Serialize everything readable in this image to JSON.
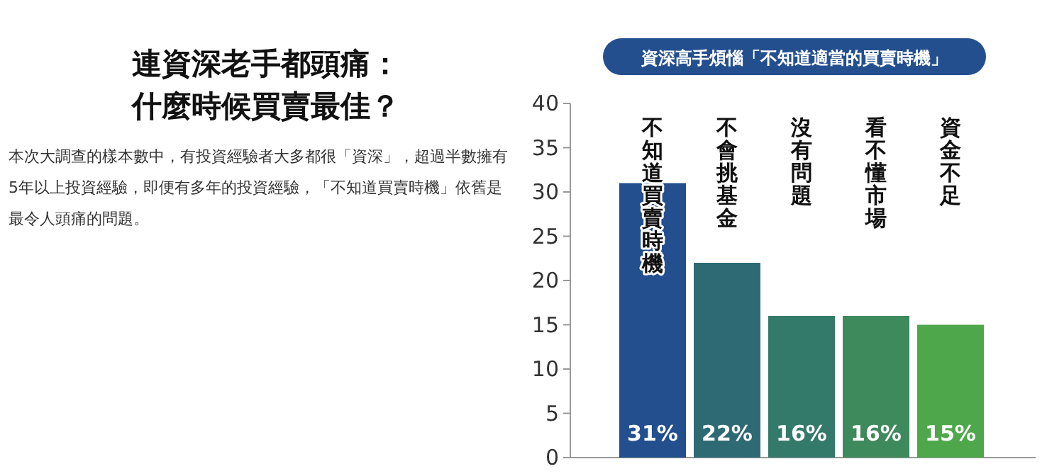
{
  "chart_data": {
    "type": "bar",
    "title": "資深高手煩惱「不知道適當的買賣時機」",
    "categories": [
      "不知道買賣時機",
      "不會挑基金",
      "沒有問題",
      "看不懂市場",
      "資金不足"
    ],
    "values": [
      31,
      22,
      16,
      16,
      15
    ],
    "value_labels": [
      "31%",
      "22%",
      "16%",
      "16%",
      "15%"
    ],
    "colors": [
      "#234f8f",
      "#2d6a74",
      "#347a6a",
      "#3f8a5c",
      "#4ea84b"
    ],
    "ylim": [
      0,
      40
    ],
    "yticks": [
      0,
      5,
      10,
      15,
      20,
      25,
      30,
      35,
      40
    ],
    "grid": false,
    "annotations": [
      "連資深老手都頭痛：什麼時候買賣最佳？",
      "本次大調查的樣本數中，有投資經驗者大多都很「資深」，超過半數擁有5年以上投資經驗，即便有多年的投資經驗，「不知道買賣時機」依舊是最令人頭痛的問題。"
    ]
  }
}
